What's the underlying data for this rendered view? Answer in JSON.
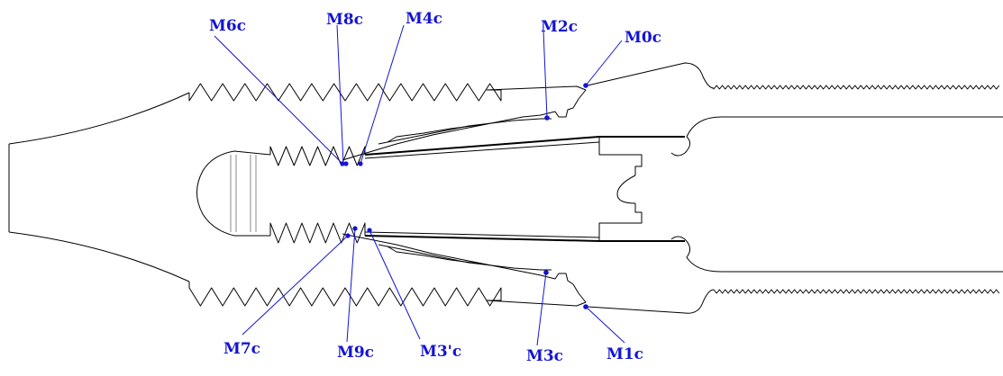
{
  "diagram": {
    "colors": {
      "outline": "#000000",
      "annotation": "#1414d2"
    },
    "markers": [
      {
        "id": "M6c",
        "label": "M6c"
      },
      {
        "id": "M8c",
        "label": "M8c"
      },
      {
        "id": "M4c",
        "label": "M4c"
      },
      {
        "id": "M2c",
        "label": "M2c"
      },
      {
        "id": "M0c",
        "label": "M0c"
      },
      {
        "id": "M7c",
        "label": "M7c"
      },
      {
        "id": "M9c",
        "label": "M9c"
      },
      {
        "id": "M3pc",
        "label": "M3'c"
      },
      {
        "id": "M3c",
        "label": "M3c"
      },
      {
        "id": "M1c",
        "label": "M1c"
      }
    ]
  }
}
